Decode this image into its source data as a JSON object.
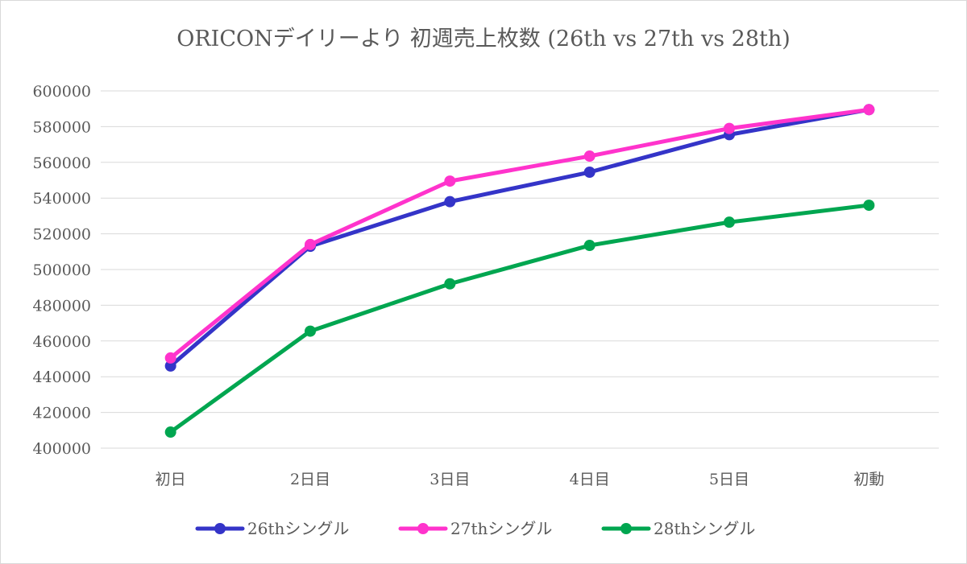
{
  "chart_data": {
    "type": "line",
    "title": "ORICONデイリーより 初週売上枚数 (26th vs 27th vs 28th)",
    "xlabel": "",
    "ylabel": "",
    "categories": [
      "初日",
      "2日目",
      "3日目",
      "4日目",
      "5日目",
      "初動"
    ],
    "ylim": [
      400000,
      600000
    ],
    "yticks": [
      400000,
      420000,
      440000,
      460000,
      480000,
      500000,
      520000,
      540000,
      560000,
      580000,
      600000
    ],
    "grid": true,
    "legend": "bottom",
    "series": [
      {
        "name": "26thシングル",
        "color": "#3434c8",
        "values": [
          446000,
          513000,
          538000,
          554500,
          575500,
          589500
        ]
      },
      {
        "name": "27thシングル",
        "color": "#ff33cc",
        "values": [
          450500,
          514000,
          549500,
          563500,
          579000,
          589500
        ]
      },
      {
        "name": "28thシングル",
        "color": "#00a650",
        "values": [
          409000,
          465500,
          492000,
          513500,
          526500,
          536000
        ]
      }
    ]
  }
}
